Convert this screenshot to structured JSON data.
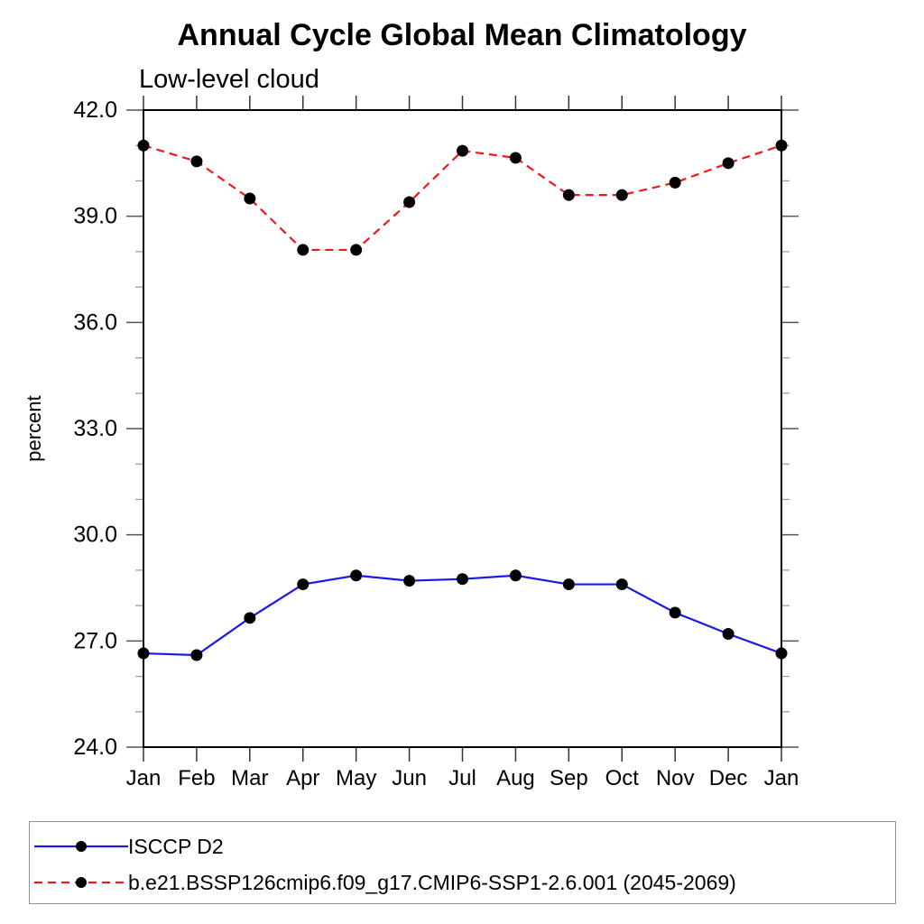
{
  "header": {
    "title": "Annual Cycle Global Mean Climatology",
    "subtitle": "Low-level cloud"
  },
  "chart_data": {
    "type": "line",
    "title": "Annual Cycle Global Mean Climatology",
    "subtitle": "Low-level cloud",
    "xlabel": "",
    "ylabel": "percent",
    "categories": [
      "Jan",
      "Feb",
      "Mar",
      "Apr",
      "May",
      "Jun",
      "Jul",
      "Aug",
      "Sep",
      "Oct",
      "Nov",
      "Dec",
      "Jan"
    ],
    "ylim": [
      24,
      42
    ],
    "yticks_major": [
      {
        "value": 42,
        "label": "42.0"
      },
      {
        "value": 39,
        "label": "39.0"
      },
      {
        "value": 36,
        "label": "36.0"
      },
      {
        "value": 33,
        "label": "33.0"
      },
      {
        "value": 30,
        "label": "30.0"
      },
      {
        "value": 27,
        "label": "27.0"
      },
      {
        "value": 24,
        "label": "24.0"
      }
    ],
    "yticks_minor": [
      41,
      40,
      38,
      37,
      35,
      34,
      32,
      31,
      29,
      28,
      26,
      25
    ],
    "grid": false,
    "legend_position": "bottom-left-box",
    "series": [
      {
        "name": "ISCCP D2",
        "color": "#1a1ae8",
        "line_style": "solid",
        "marker": "filled-circle",
        "marker_color": "#000000",
        "values": [
          26.65,
          26.6,
          27.65,
          28.6,
          28.85,
          28.7,
          28.75,
          28.85,
          28.6,
          28.6,
          27.8,
          27.2,
          26.65
        ]
      },
      {
        "name": "b.e21.BSSP126cmip6.f09_g17.CMIP6-SSP1-2.6.001 (2045-2069)",
        "color": "#f01818",
        "line_style": "dashed",
        "marker": "filled-circle",
        "marker_color": "#000000",
        "values": [
          41.0,
          40.55,
          39.5,
          38.05,
          38.05,
          39.4,
          40.85,
          40.65,
          39.6,
          39.6,
          39.95,
          40.5,
          41.0
        ]
      }
    ]
  },
  "legend": {
    "entries": [
      {
        "label": "ISCCP D2"
      },
      {
        "label": "b.e21.BSSP126cmip6.f09_g17.CMIP6-SSP1-2.6.001 (2045-2069)"
      }
    ]
  }
}
